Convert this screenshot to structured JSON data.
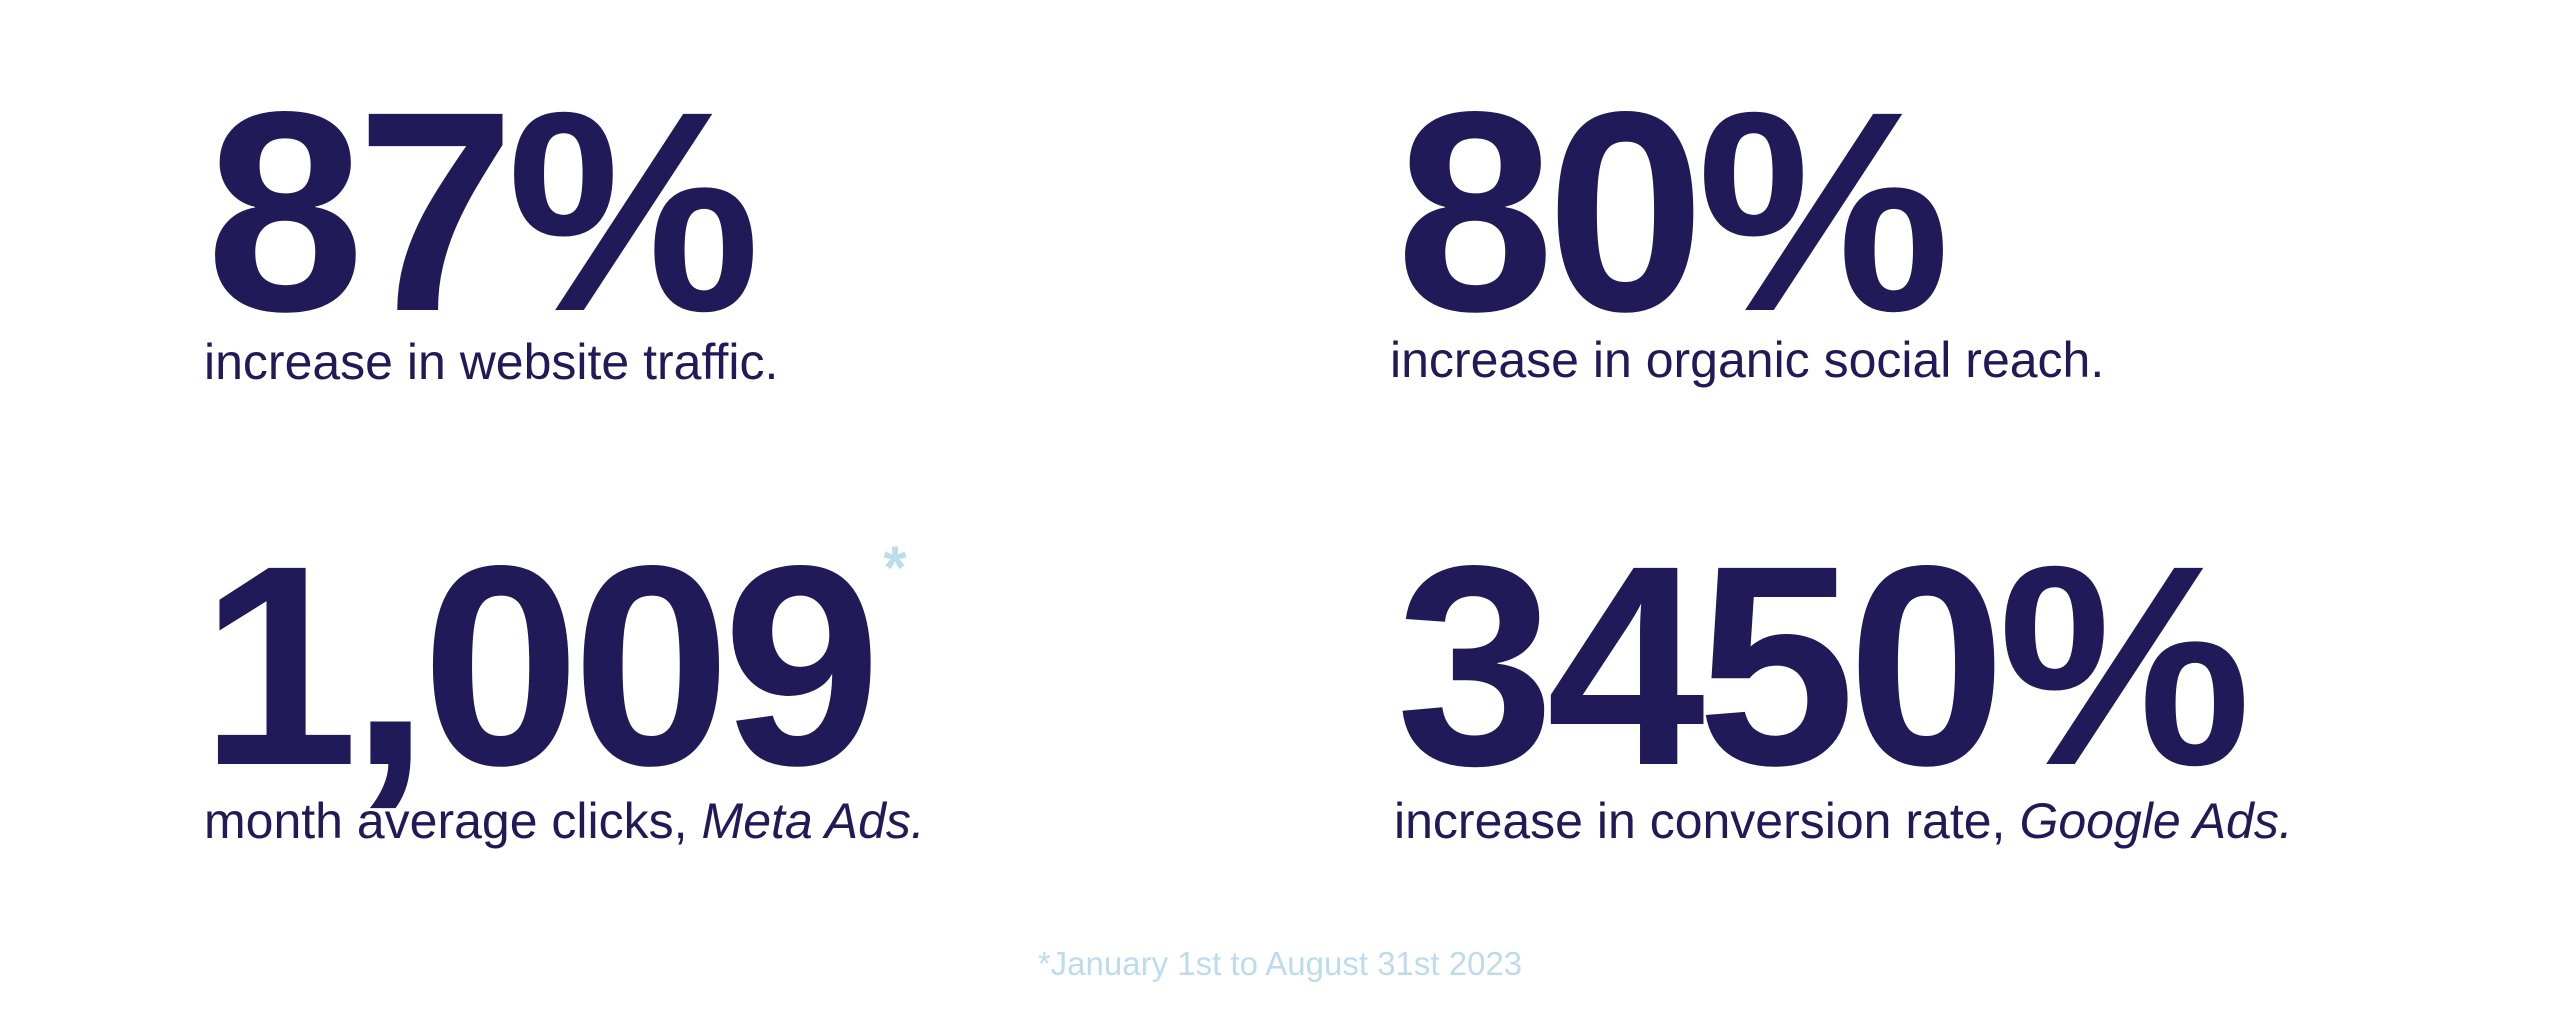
{
  "stats": [
    {
      "value": "87%",
      "text": "increase in website traffic."
    },
    {
      "value": "80%",
      "text": "increase in organic social reach."
    },
    {
      "value": "1,009",
      "note": "*",
      "text": "month average clicks,",
      "emphasis": "Meta Ads."
    },
    {
      "value": "3450%",
      "text": "increase in conversion rate,",
      "emphasis": "Google Ads."
    }
  ],
  "footnote": "*January 1st to August 31st 2023"
}
